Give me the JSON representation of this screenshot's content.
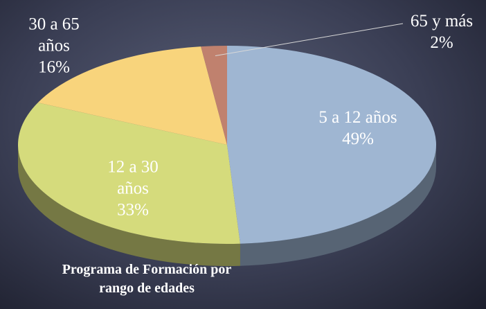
{
  "chart_data": {
    "type": "pie",
    "title": "Programa de Formación por rango de edades",
    "categories": [
      "5 a 12 años",
      "12 a 30 años",
      "30 a 65 años",
      "65 y más"
    ],
    "values": [
      49,
      33,
      16,
      2
    ],
    "value_labels": [
      "49%",
      "33%",
      "16%",
      "2%"
    ],
    "colors": [
      "#9fb6d2",
      "#d5db7c",
      "#f8d47c",
      "#c0816e"
    ]
  }
}
